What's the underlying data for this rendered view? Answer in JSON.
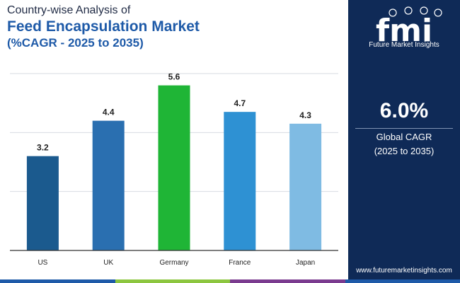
{
  "header": {
    "line1": "Country-wise Analysis of",
    "line2": "Feed Encapsulation Market",
    "line3": "(%CAGR - 2025 to 2035)"
  },
  "sidebar": {
    "logo_text": "fmi",
    "logo_caption": "Future Market Insights",
    "cagr_value": "6.0%",
    "cagr_label": "Global CAGR",
    "cagr_period": "(2025 to 2035)",
    "website": "www.futuremarketinsights.com"
  },
  "colors": {
    "sidebar_bg": "#0f2a57",
    "title_dark": "#1f2a44",
    "title_blue": "#1e5aa8",
    "bottom_bar": [
      "#1e5aa8",
      "#8cc63f",
      "#7a3b8f",
      "#1e5aa8"
    ]
  },
  "chart_data": {
    "type": "bar",
    "categories": [
      "US",
      "UK",
      "Germany",
      "France",
      "Japan"
    ],
    "values": [
      3.2,
      4.4,
      5.6,
      4.7,
      4.3
    ],
    "bar_colors": [
      "#1b5a8e",
      "#2a6fb0",
      "#1fb536",
      "#2e91d3",
      "#7fbbe3"
    ],
    "ylim": [
      0,
      6
    ],
    "grid": true,
    "value_labels": true,
    "title": "",
    "xlabel": "",
    "ylabel": ""
  }
}
